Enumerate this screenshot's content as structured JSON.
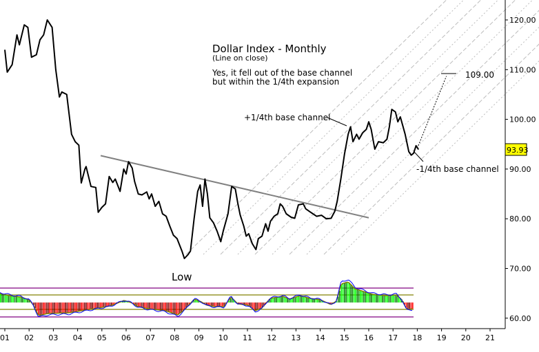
{
  "chart_data": {
    "type": "line",
    "title": "Dollar Index - Monthly",
    "subtitle": "(Line on close)",
    "commentary": [
      "Yes, it fell out of the base channel",
      "but within the 1/4th expansion"
    ],
    "xlabel": "",
    "ylabel": "",
    "ylim": [
      58,
      124
    ],
    "y_ticks": [
      "120.00",
      "110.00",
      "100.00",
      "90.00",
      "80.00",
      "70.00",
      "60.00"
    ],
    "y_tick_values": [
      120,
      110,
      100,
      90,
      80,
      70,
      60
    ],
    "x_ticks": [
      "01",
      "02",
      "03",
      "04",
      "05",
      "06",
      "07",
      "08",
      "09",
      "10",
      "11",
      "12",
      "13",
      "14",
      "15",
      "16",
      "17",
      "18",
      "19",
      "20",
      "21"
    ],
    "last_price": "93.93",
    "last_price_color": "#ffff00",
    "target_label": "109.00",
    "annotations": {
      "plus_quarter": "+1/4th base channel",
      "minus_quarter": "-1/4th base channel",
      "low": "Low"
    },
    "series": [
      {
        "name": "Dollar Index (monthly close)",
        "color": "#000000",
        "points": [
          [
            2001.0,
            114
          ],
          [
            2001.1,
            109.5
          ],
          [
            2001.3,
            111
          ],
          [
            2001.5,
            117
          ],
          [
            2001.6,
            115
          ],
          [
            2001.8,
            119
          ],
          [
            2001.95,
            118.5
          ],
          [
            2002.1,
            112.5
          ],
          [
            2002.3,
            113
          ],
          [
            2002.45,
            116
          ],
          [
            2002.6,
            117
          ],
          [
            2002.75,
            120
          ],
          [
            2002.95,
            118.5
          ],
          [
            2003.1,
            110
          ],
          [
            2003.25,
            104.5
          ],
          [
            2003.35,
            105.5
          ],
          [
            2003.55,
            105
          ],
          [
            2003.75,
            97
          ],
          [
            2003.9,
            95.5
          ],
          [
            2004.05,
            94.8
          ],
          [
            2004.15,
            87.2
          ],
          [
            2004.3,
            90
          ],
          [
            2004.35,
            90.5
          ],
          [
            2004.55,
            86.5
          ],
          [
            2004.75,
            86.3
          ],
          [
            2004.85,
            81.3
          ],
          [
            2005.0,
            82.3
          ],
          [
            2005.15,
            83
          ],
          [
            2005.3,
            88.5
          ],
          [
            2005.45,
            87.3
          ],
          [
            2005.55,
            88
          ],
          [
            2005.75,
            85.5
          ],
          [
            2005.9,
            90
          ],
          [
            2006.0,
            89
          ],
          [
            2006.1,
            91.5
          ],
          [
            2006.25,
            90.2
          ],
          [
            2006.35,
            87.5
          ],
          [
            2006.5,
            85
          ],
          [
            2006.65,
            84.8
          ],
          [
            2006.85,
            85.4
          ],
          [
            2006.95,
            84
          ],
          [
            2007.05,
            85
          ],
          [
            2007.2,
            82.5
          ],
          [
            2007.35,
            83.5
          ],
          [
            2007.5,
            81
          ],
          [
            2007.65,
            80.5
          ],
          [
            2007.8,
            78.5
          ],
          [
            2007.95,
            76.7
          ],
          [
            2008.1,
            76
          ],
          [
            2008.3,
            73.5
          ],
          [
            2008.4,
            72
          ],
          [
            2008.55,
            72.8
          ],
          [
            2008.65,
            73.5
          ],
          [
            2008.8,
            80
          ],
          [
            2008.95,
            85.5
          ],
          [
            2009.05,
            86.8
          ],
          [
            2009.15,
            82.5
          ],
          [
            2009.25,
            88
          ],
          [
            2009.35,
            85
          ],
          [
            2009.45,
            80.2
          ],
          [
            2009.6,
            79.2
          ],
          [
            2009.75,
            77.5
          ],
          [
            2009.9,
            75.4
          ],
          [
            2010.0,
            77.5
          ],
          [
            2010.2,
            81
          ],
          [
            2010.35,
            86.5
          ],
          [
            2010.5,
            86
          ],
          [
            2010.6,
            83.2
          ],
          [
            2010.7,
            80.8
          ],
          [
            2010.85,
            78.5
          ],
          [
            2010.95,
            76.5
          ],
          [
            2011.05,
            77
          ],
          [
            2011.2,
            75
          ],
          [
            2011.35,
            73.8
          ],
          [
            2011.45,
            76
          ],
          [
            2011.6,
            76.5
          ],
          [
            2011.75,
            79
          ],
          [
            2011.85,
            77.5
          ],
          [
            2011.95,
            79.5
          ],
          [
            2012.1,
            80.5
          ],
          [
            2012.25,
            81
          ],
          [
            2012.35,
            83
          ],
          [
            2012.45,
            82.5
          ],
          [
            2012.6,
            81
          ],
          [
            2012.8,
            80.3
          ],
          [
            2012.95,
            80.1
          ],
          [
            2013.1,
            82.8
          ],
          [
            2013.3,
            83
          ],
          [
            2013.4,
            82
          ],
          [
            2013.55,
            81.5
          ],
          [
            2013.7,
            81
          ],
          [
            2013.85,
            80.5
          ],
          [
            2014.05,
            80.7
          ],
          [
            2014.25,
            80
          ],
          [
            2014.45,
            80.1
          ],
          [
            2014.6,
            81.5
          ],
          [
            2014.7,
            83.5
          ],
          [
            2014.85,
            88
          ],
          [
            2015.0,
            93
          ],
          [
            2015.15,
            97
          ],
          [
            2015.25,
            98.5
          ],
          [
            2015.35,
            95.5
          ],
          [
            2015.5,
            97
          ],
          [
            2015.6,
            96
          ],
          [
            2015.75,
            97.3
          ],
          [
            2015.9,
            98
          ],
          [
            2016.0,
            99.5
          ],
          [
            2016.1,
            98
          ],
          [
            2016.25,
            94
          ],
          [
            2016.4,
            95.5
          ],
          [
            2016.6,
            95.3
          ],
          [
            2016.75,
            96
          ],
          [
            2016.85,
            98.5
          ],
          [
            2016.95,
            102
          ],
          [
            2017.1,
            101.5
          ],
          [
            2017.2,
            99.5
          ],
          [
            2017.3,
            100.5
          ],
          [
            2017.5,
            97
          ],
          [
            2017.65,
            93.5
          ],
          [
            2017.75,
            92.8
          ],
          [
            2017.85,
            93.2
          ],
          [
            2017.95,
            94.7
          ],
          [
            2018.05,
            93.93
          ]
        ]
      }
    ],
    "trendline": {
      "from": [
        2004.95,
        92.7
      ],
      "to": [
        2016.0,
        80.2
      ],
      "color": "#808080"
    },
    "projection": {
      "from": [
        2018.0,
        94.2
      ],
      "to": [
        2019.2,
        108.7
      ],
      "style": "dotted"
    },
    "target_line": {
      "x1": 2018.95,
      "x2": 2019.6,
      "y": 109.3
    },
    "indicator": {
      "type": "histogram",
      "bands": {
        "outer_color": "#800080",
        "inner_color": "#808000"
      },
      "positive_colors": [
        "#00ff00",
        "#008000"
      ],
      "negative_colors": [
        "#ff0000",
        "#800000"
      ],
      "signal_color": "#0000ff"
    }
  }
}
